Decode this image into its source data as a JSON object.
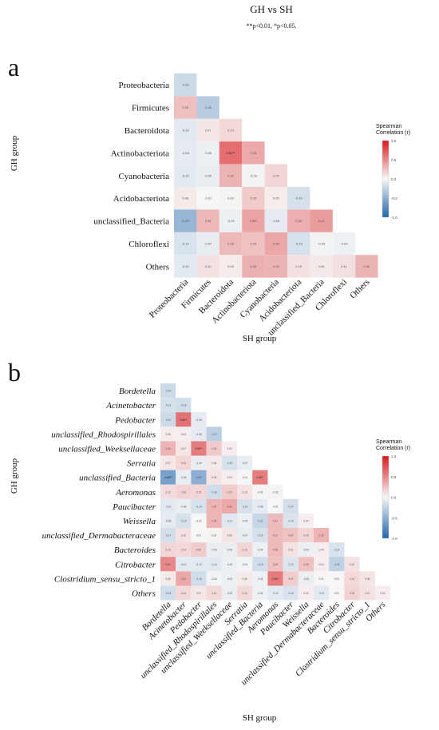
{
  "figure": {
    "title": "GH vs SH",
    "subtitle": "**p<0.01, *p<0.05."
  },
  "colors": {
    "neg_strong": "#2166ac",
    "neutral": "#f7f7f7",
    "pos_strong": "#d7191c"
  },
  "chart_data": [
    {
      "type": "heatmap",
      "panel": "a",
      "xlabel": "SH group",
      "ylabel": "GH group",
      "legend_title": "Spearman Correlation (r)",
      "legend_ticks": [
        "1.0",
        "0.5",
        "0.0",
        "-0.5",
        "-1.0"
      ],
      "legend_range": [
        -1,
        1
      ],
      "rows": [
        "Proteobacteria",
        "Firmicutes",
        "Bacteroidota",
        "Actinobacteriota",
        "Cyanobacteria",
        "Acidobacteriota",
        "unclassified_Bacteria",
        "Chloroflexi",
        "Others"
      ],
      "cols": [
        "Proteobacteria",
        "Firmicutes",
        "Bacteroidota",
        "Actinobacteriota",
        "Cyanobacteria",
        "Acidobacteriota",
        "unclassified_Bacteria",
        "Chloroflexi",
        "Others"
      ],
      "values": [
        [
          -0.2
        ],
        [
          0.25,
          -0.3
        ],
        [
          -0.1,
          0.07,
          0.14
        ],
        [
          -0.08,
          -0.05,
          0.62,
          0.35
        ],
        [
          -0.1,
          -0.06,
          0.3,
          -0.03,
          0.15
        ],
        [
          0.06,
          -0.01,
          0.02,
          0.2,
          0.05,
          -0.16
        ],
        [
          -0.45,
          0.28,
          -0.05,
          0.38,
          -0.08,
          0.33,
          0.41
        ],
        [
          -0.14,
          -0.07,
          0.28,
          0.24,
          0.36,
          -0.15,
          -0.03,
          -0.04
        ],
        [
          -0.1,
          0.1,
          0.05,
          0.32,
          0.3,
          0.1,
          0.06,
          0.11,
          0.3
        ]
      ],
      "labels": [
        [
          "-0.20"
        ],
        [
          "0.25",
          "-0.30"
        ],
        [
          "-0.10",
          "0.07",
          "0.14"
        ],
        [
          "-0.08",
          "-0.05",
          "0.62**",
          "0.35"
        ],
        [
          "-0.10",
          "-0.06",
          "0.30",
          "-0.03",
          "0.15"
        ],
        [
          "0.06",
          "-0.01",
          "0.02",
          "0.20",
          "0.05",
          "-0.16"
        ],
        [
          "-0.45*",
          "0.28",
          "-0.05",
          "0.38*",
          "-0.08",
          "0.33",
          "0.41"
        ],
        [
          "-0.14",
          "-0.07",
          "0.28",
          "0.24",
          "0.36",
          "-0.15",
          "-0.03",
          "-0.04"
        ],
        [
          "-0.10",
          "0.10",
          "0.05",
          "0.32",
          "0.30",
          "0.10",
          "0.06",
          "0.11",
          "0.30"
        ]
      ]
    },
    {
      "type": "heatmap",
      "panel": "b",
      "xlabel": "SH group",
      "ylabel": "GH group",
      "legend_title": "Spearman Correlation (r)",
      "legend_ticks": [
        "1.0",
        "0.5",
        "0.0",
        "-0.5",
        "-1.0"
      ],
      "legend_range": [
        -1,
        1
      ],
      "rows": [
        "Bordetella",
        "Acinetobacter",
        "Pedobacter",
        "unclassified_Rhodospirillales",
        "unclassified_Weeksellaceae",
        "Serratia",
        "unclassified_Bacteria",
        "Aeromonas",
        "Paucibacter",
        "Weissella",
        "unclassified_Dermabacteraceae",
        "Bacteroides",
        "Citrobacter",
        "Clostridium_sensu_stricto_1",
        "Others"
      ],
      "cols": [
        "Bordetella",
        "Acinetobacter",
        "Pedobacter",
        "unclassified_Rhodospirillales",
        "unclassified_Weeksellaceae",
        "Serratia",
        "unclassified_Bacteria",
        "Aeromonas",
        "Paucibacter",
        "Weissella",
        "unclassified_Dermabacteraceae",
        "Bacteroides",
        "Citrobacter",
        "Clostridium_sensu_stricto_1",
        "Others"
      ],
      "values": [
        [
          -0.2
        ],
        [
          -0.16,
          -0.18
        ],
        [
          -0.2,
          0.6,
          -0.08
        ],
        [
          0.05,
          0.04,
          -0.08,
          -0.27
        ],
        [
          0.3,
          0.07,
          0.55,
          0.2,
          0.04
        ],
        [
          0.07,
          0.15,
          -0.06,
          0.06,
          -0.15,
          -0.07
        ],
        [
          -0.6,
          -0.06,
          -0.5,
          0.09,
          0.04,
          -0.01,
          0.55
        ],
        [
          0.12,
          0.16,
          0.15,
          -0.18,
          0.2,
          0.1,
          -0.02,
          -0.02
        ],
        [
          -0.1,
          -0.06,
          -0.15,
          0.3,
          0.35,
          -0.15,
          -0.08,
          -0.01,
          -0.17
        ],
        [
          -0.08,
          -0.15,
          -0.01,
          0.3,
          -0.11,
          -0.05,
          -0.22,
          0.27,
          -0.13,
          0.04
        ],
        [
          -0.17,
          0.1,
          0.01,
          0.02,
          0.08,
          -0.07,
          -0.15,
          0.27,
          0.24,
          0.15,
          0.3
        ],
        [
          0.15,
          0.14,
          0.2,
          -0.06,
          -0.06,
          0.15,
          -0.04,
          0.28,
          0.1,
          -0.05,
          0.04,
          -0.14
        ],
        [
          0.5,
          -0.1,
          -0.1,
          -0.1,
          -0.05,
          -0.02,
          -0.18,
          0.25,
          -0.12,
          0.25,
          0.04,
          -0.26,
          0.1
        ],
        [
          0.06,
          0.36,
          -0.18,
          -0.03,
          -0.05,
          0.06,
          -0.04,
          0.56,
          0.19,
          -0.06,
          0.01,
          0.01,
          0.14,
          0.08
        ],
        [
          -0.18,
          0.14,
          0.07,
          0.14,
          -0.06,
          0.14,
          -0.04,
          -0.1,
          -0.14,
          0.04,
          -0.1,
          0.01,
          0.16,
          0.1,
          0.04
        ]
      ],
      "labels": [
        [
          "-0.20"
        ],
        [
          "-0.16",
          "-0.18"
        ],
        [
          "-0.20",
          "0.60**",
          "-0.08"
        ],
        [
          "0.05",
          "0.04",
          "-0.08",
          "-0.27"
        ],
        [
          "0.30",
          "0.07",
          "0.55**",
          "0.20",
          "0.04"
        ],
        [
          "0.07",
          "0.15",
          "-0.06",
          "0.06",
          "-0.15",
          "-0.07"
        ],
        [
          "-0.60**",
          "-0.06",
          "-0.50*",
          "0.09",
          "0.04",
          "-0.01",
          "0.55**"
        ],
        [
          "0.12",
          "0.16",
          "0.15",
          "-0.18",
          "0.20",
          "0.10",
          "-0.02",
          "-0.02"
        ],
        [
          "-0.10",
          "-0.06",
          "-0.15",
          "0.30",
          "0.35",
          "-0.15",
          "-0.08",
          "-0.01",
          "-0.17"
        ],
        [
          "-0.08",
          "-0.15",
          "-0.01",
          "0.30",
          "-0.11",
          "-0.05",
          "-0.22",
          "0.27",
          "-0.13",
          "0.04"
        ],
        [
          "-0.17",
          "0.10",
          "0.01",
          "0.02",
          "0.08",
          "-0.07",
          "-0.15",
          "0.27",
          "0.24",
          "0.15",
          "0.30"
        ],
        [
          "0.15",
          "0.14",
          "0.20",
          "-0.06",
          "-0.06",
          "0.15",
          "-0.04",
          "0.28",
          "0.10",
          "-0.05",
          "0.04",
          "-0.14"
        ],
        [
          "0.50*",
          "-0.10",
          "-0.10",
          "-0.10",
          "-0.05",
          "-0.02",
          "-0.18",
          "0.25",
          "-0.12",
          "0.25",
          "0.04",
          "-0.26",
          "0.10"
        ],
        [
          "0.06",
          "0.36",
          "-0.18",
          "-0.03",
          "-0.05",
          "0.06",
          "-0.04",
          "0.56**",
          "0.19",
          "-0.06",
          "0.01",
          "0.01",
          "0.14",
          "0.08"
        ],
        [
          "-0.18",
          "0.14",
          "0.07",
          "0.14",
          "-0.06",
          "0.14",
          "-0.04",
          "-0.10",
          "-0.14",
          "0.04",
          "-0.10",
          "0.01",
          "0.16",
          "0.10",
          "0.04"
        ]
      ]
    }
  ]
}
